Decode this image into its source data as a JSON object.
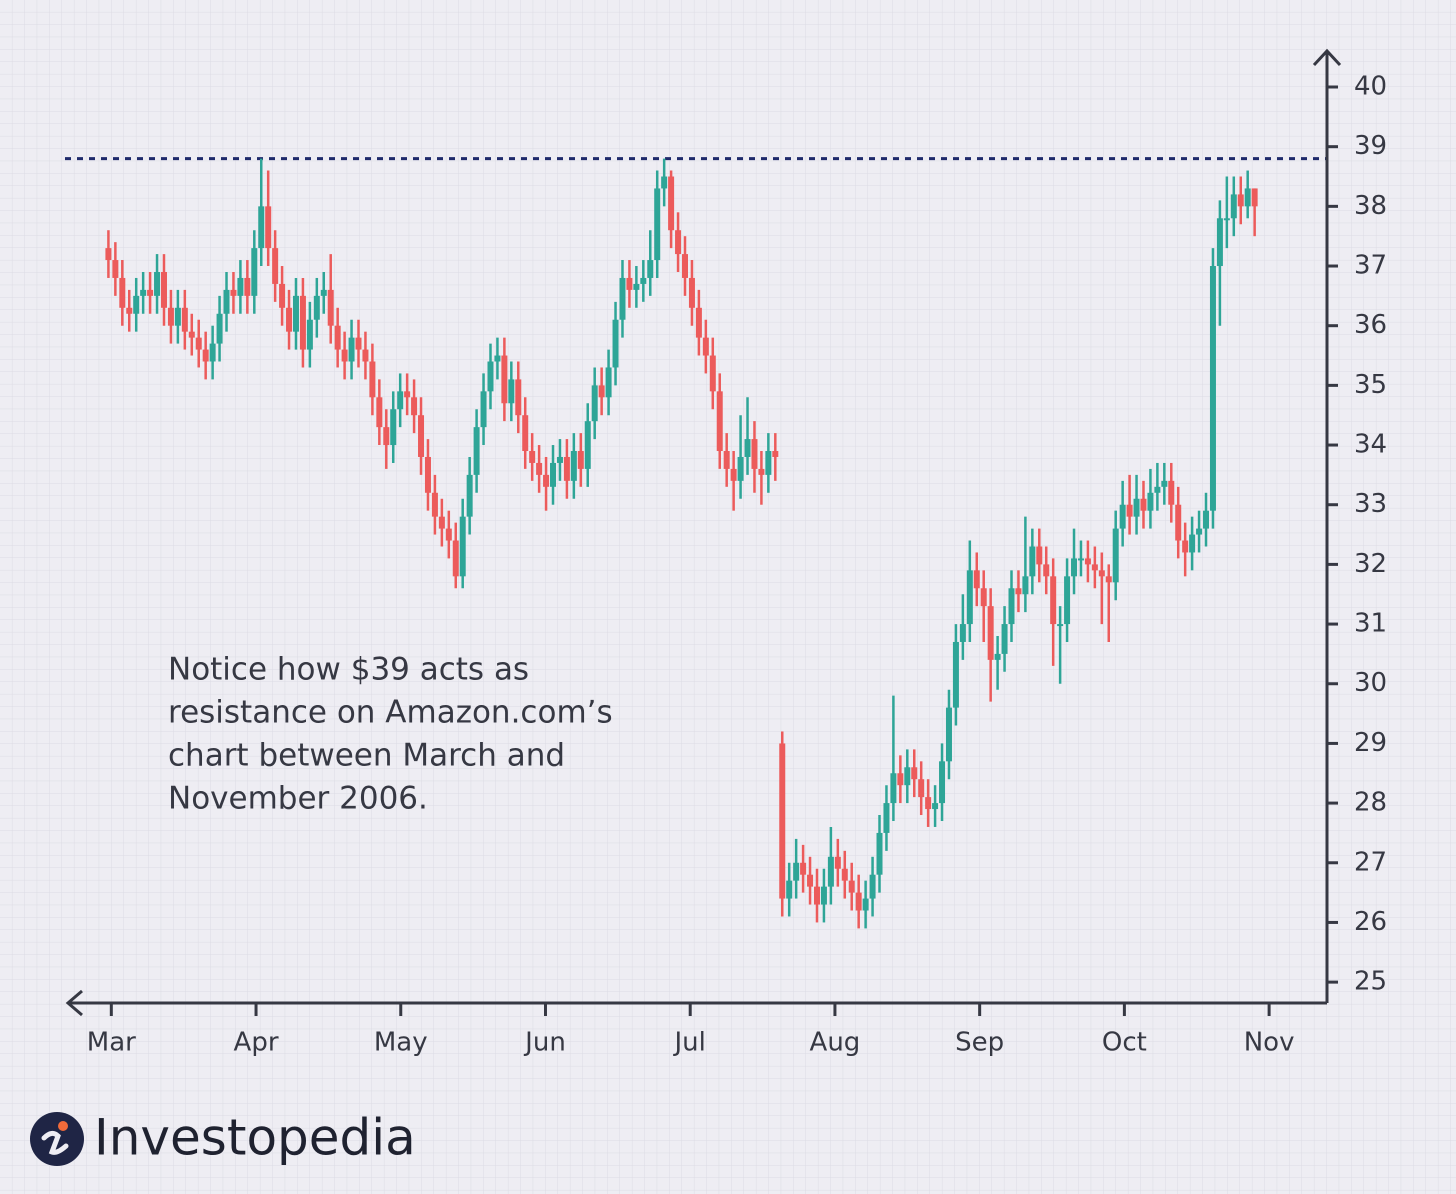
{
  "chart_data": {
    "type": "candlestick",
    "annotation": [
      "Notice how $39 acts as",
      "resistance on Amazon.com’s",
      "chart between March and",
      "November 2006."
    ],
    "resistance": 38.8,
    "up_color": "#2ea597",
    "down_color": "#ec5b5b",
    "grid": true,
    "xlim": [
      -0.32,
      8.4
    ],
    "xticks": [
      {
        "value": 0,
        "label": "Mar"
      },
      {
        "value": 1,
        "label": "Apr"
      },
      {
        "value": 2,
        "label": "May"
      },
      {
        "value": 3,
        "label": "Jun"
      },
      {
        "value": 4,
        "label": "Jul"
      },
      {
        "value": 5,
        "label": "Aug"
      },
      {
        "value": 6,
        "label": "Sep"
      },
      {
        "value": 7,
        "label": "Oct"
      },
      {
        "value": 8,
        "label": "Nov"
      }
    ],
    "ylim": [
      24.65,
      40.62
    ],
    "yticks": [
      25,
      26,
      27,
      28,
      29,
      30,
      31,
      32,
      33,
      34,
      35,
      36,
      37,
      38,
      39,
      40
    ],
    "x": [
      -0.02,
      0.028,
      0.076,
      0.124,
      0.172,
      0.22,
      0.268,
      0.316,
      0.364,
      0.412,
      0.46,
      0.508,
      0.556,
      0.604,
      0.652,
      0.7,
      0.748,
      0.796,
      0.844,
      0.892,
      0.94,
      0.988,
      1.036,
      1.084,
      1.132,
      1.18,
      1.228,
      1.276,
      1.324,
      1.372,
      1.42,
      1.468,
      1.516,
      1.564,
      1.612,
      1.66,
      1.708,
      1.756,
      1.804,
      1.852,
      1.9,
      1.948,
      1.996,
      2.044,
      2.092,
      2.14,
      2.188,
      2.236,
      2.284,
      2.332,
      2.38,
      2.428,
      2.476,
      2.524,
      2.572,
      2.62,
      2.668,
      2.716,
      2.764,
      2.812,
      2.86,
      2.908,
      2.956,
      3.004,
      3.052,
      3.1,
      3.148,
      3.196,
      3.244,
      3.292,
      3.34,
      3.388,
      3.436,
      3.484,
      3.532,
      3.58,
      3.628,
      3.676,
      3.724,
      3.772,
      3.82,
      3.868,
      3.916,
      3.964,
      4.012,
      4.06,
      4.108,
      4.156,
      4.204,
      4.252,
      4.3,
      4.348,
      4.396,
      4.444,
      4.492,
      4.54,
      4.588,
      4.636,
      4.684,
      4.732,
      4.78,
      4.828,
      4.876,
      4.924,
      4.972,
      5.02,
      5.068,
      5.116,
      5.164,
      5.212,
      5.26,
      5.308,
      5.356,
      5.404,
      5.452,
      5.5,
      5.548,
      5.596,
      5.644,
      5.692,
      5.74,
      5.788,
      5.836,
      5.884,
      5.932,
      5.98,
      6.028,
      6.076,
      6.124,
      6.172,
      6.22,
      6.268,
      6.316,
      6.364,
      6.412,
      6.46,
      6.508,
      6.556,
      6.604,
      6.652,
      6.7,
      6.748,
      6.796,
      6.844,
      6.892,
      6.94,
      6.988,
      7.036,
      7.084,
      7.132,
      7.18,
      7.228,
      7.276,
      7.324,
      7.372,
      7.42,
      7.468,
      7.516,
      7.564,
      7.612,
      7.66,
      7.708,
      7.756,
      7.804,
      7.852,
      7.9
    ],
    "open": [
      37.3,
      37.1,
      36.8,
      36.3,
      36.2,
      36.5,
      36.6,
      36.5,
      36.9,
      36.3,
      36.0,
      36.3,
      35.9,
      35.8,
      35.6,
      35.4,
      35.7,
      36.2,
      36.6,
      36.5,
      36.8,
      36.5,
      37.3,
      38.0,
      37.3,
      36.7,
      36.3,
      35.9,
      36.5,
      35.6,
      36.1,
      36.5,
      36.6,
      36.0,
      35.6,
      35.4,
      35.8,
      35.6,
      35.4,
      34.8,
      34.3,
      34.0,
      34.6,
      34.9,
      34.8,
      34.5,
      33.8,
      33.2,
      32.8,
      32.6,
      32.4,
      31.8,
      32.8,
      33.5,
      34.3,
      34.9,
      35.4,
      35.5,
      34.7,
      35.1,
      34.5,
      33.9,
      33.7,
      33.5,
      33.3,
      33.7,
      33.8,
      33.4,
      33.9,
      33.6,
      34.4,
      35.0,
      34.8,
      35.3,
      36.1,
      36.8,
      36.6,
      36.7,
      36.8,
      37.1,
      38.3,
      38.5,
      37.6,
      37.2,
      36.8,
      36.3,
      35.8,
      35.5,
      34.9,
      33.9,
      33.6,
      33.4,
      33.8,
      34.1,
      33.6,
      33.5,
      33.9,
      29.0,
      26.4,
      26.7,
      27.0,
      26.8,
      26.6,
      26.3,
      26.6,
      27.1,
      26.9,
      26.7,
      26.5,
      26.2,
      26.4,
      26.8,
      27.5,
      28.0,
      28.5,
      28.3,
      28.6,
      28.4,
      28.1,
      27.9,
      28.0,
      28.7,
      29.6,
      30.7,
      31.0,
      31.9,
      31.6,
      31.3,
      30.4,
      30.5,
      31.0,
      31.6,
      31.5,
      31.8,
      32.3,
      32.0,
      31.8,
      31.0,
      31.0,
      31.8,
      32.1,
      32.1,
      32.0,
      31.9,
      31.8,
      31.7,
      32.6,
      33.0,
      32.8,
      33.1,
      32.9,
      33.2,
      33.3,
      33.4,
      33.0,
      32.4,
      32.2,
      32.5,
      32.6,
      32.9,
      37.0,
      37.8,
      37.8,
      38.2,
      38.0,
      38.3
    ],
    "high": [
      37.6,
      37.4,
      37.1,
      36.6,
      36.8,
      36.9,
      36.9,
      37.2,
      37.2,
      36.6,
      36.6,
      36.6,
      36.2,
      36.1,
      35.9,
      36.0,
      36.5,
      36.9,
      36.9,
      37.1,
      37.1,
      37.6,
      38.8,
      38.6,
      37.6,
      37.0,
      36.6,
      36.8,
      36.8,
      36.4,
      36.8,
      36.9,
      37.2,
      36.3,
      35.9,
      36.1,
      36.1,
      35.9,
      35.7,
      35.1,
      34.6,
      34.9,
      35.2,
      35.2,
      35.1,
      34.8,
      34.1,
      33.5,
      33.1,
      32.9,
      32.7,
      33.1,
      33.8,
      34.6,
      35.2,
      35.7,
      35.8,
      35.8,
      35.4,
      35.4,
      34.8,
      34.2,
      34.0,
      33.8,
      34.0,
      34.1,
      34.1,
      34.2,
      34.2,
      34.7,
      35.3,
      35.3,
      35.6,
      36.4,
      37.1,
      37.1,
      37.0,
      37.1,
      37.6,
      38.6,
      38.8,
      38.6,
      37.9,
      37.5,
      37.1,
      36.6,
      36.1,
      35.8,
      35.2,
      34.2,
      33.9,
      34.5,
      34.8,
      34.4,
      33.9,
      34.2,
      34.2,
      29.2,
      27.0,
      27.4,
      27.3,
      27.1,
      26.9,
      26.9,
      27.6,
      27.4,
      27.2,
      27.0,
      26.8,
      26.7,
      27.1,
      27.8,
      28.3,
      29.8,
      28.8,
      28.9,
      28.9,
      28.7,
      28.4,
      28.3,
      29.0,
      29.9,
      31.0,
      31.5,
      32.4,
      32.2,
      31.9,
      31.6,
      30.8,
      31.3,
      31.9,
      31.9,
      32.8,
      32.6,
      32.6,
      32.3,
      32.1,
      31.3,
      32.1,
      32.6,
      32.4,
      32.4,
      32.3,
      32.2,
      32.0,
      32.9,
      33.4,
      33.5,
      33.5,
      33.4,
      33.6,
      33.7,
      33.7,
      33.7,
      33.3,
      32.7,
      32.8,
      32.9,
      33.2,
      37.3,
      38.1,
      38.5,
      38.5,
      38.5,
      38.6,
      38.3
    ],
    "low": [
      36.8,
      36.5,
      36.0,
      35.9,
      35.9,
      36.2,
      36.2,
      36.2,
      36.0,
      35.7,
      35.7,
      35.6,
      35.5,
      35.3,
      35.1,
      35.1,
      35.4,
      35.9,
      36.2,
      36.2,
      36.2,
      36.2,
      37.0,
      37.0,
      36.4,
      36.0,
      35.6,
      35.6,
      35.3,
      35.3,
      35.8,
      36.2,
      35.7,
      35.3,
      35.1,
      35.1,
      35.3,
      35.1,
      34.5,
      34.0,
      33.6,
      33.7,
      34.3,
      34.5,
      34.2,
      33.5,
      32.9,
      32.5,
      32.3,
      32.1,
      31.6,
      31.6,
      32.5,
      33.2,
      34.0,
      34.6,
      35.1,
      34.4,
      34.4,
      34.2,
      33.6,
      33.4,
      33.2,
      32.9,
      33.0,
      33.4,
      33.1,
      33.1,
      33.3,
      33.3,
      34.1,
      34.5,
      34.5,
      35.0,
      35.8,
      36.3,
      36.3,
      36.4,
      36.5,
      36.8,
      38.0,
      37.3,
      36.9,
      36.5,
      36.0,
      35.5,
      35.2,
      34.6,
      33.6,
      33.3,
      32.9,
      33.1,
      33.5,
      33.2,
      33.0,
      33.2,
      33.4,
      26.1,
      26.1,
      26.4,
      26.5,
      26.3,
      26.0,
      26.0,
      26.3,
      26.6,
      26.4,
      26.2,
      25.9,
      25.9,
      26.1,
      26.5,
      27.2,
      27.7,
      28.0,
      28.0,
      28.1,
      27.8,
      27.6,
      27.6,
      27.7,
      28.4,
      29.3,
      30.4,
      30.7,
      31.3,
      30.7,
      29.7,
      29.9,
      30.2,
      30.7,
      31.2,
      31.2,
      31.5,
      31.7,
      31.5,
      30.3,
      30.0,
      30.7,
      31.5,
      31.8,
      31.7,
      31.6,
      31.0,
      30.7,
      31.4,
      32.3,
      32.5,
      32.5,
      32.6,
      32.6,
      32.9,
      33.0,
      32.7,
      32.1,
      31.8,
      31.9,
      32.2,
      32.3,
      32.6,
      36.0,
      37.3,
      37.5,
      37.7,
      37.8,
      37.5
    ],
    "close": [
      37.1,
      36.8,
      36.3,
      36.2,
      36.5,
      36.6,
      36.5,
      36.9,
      36.3,
      36.0,
      36.3,
      35.9,
      35.8,
      35.6,
      35.4,
      35.7,
      36.2,
      36.6,
      36.5,
      36.8,
      36.5,
      37.3,
      38.0,
      37.3,
      36.7,
      36.3,
      35.9,
      36.5,
      35.6,
      36.1,
      36.5,
      36.6,
      36.0,
      35.6,
      35.4,
      35.8,
      35.6,
      35.4,
      34.8,
      34.3,
      34.0,
      34.6,
      34.9,
      34.8,
      34.5,
      33.8,
      33.2,
      32.8,
      32.6,
      32.4,
      31.8,
      32.8,
      33.5,
      34.3,
      34.9,
      35.4,
      35.5,
      34.7,
      35.1,
      34.5,
      33.9,
      33.7,
      33.5,
      33.3,
      33.7,
      33.8,
      33.4,
      33.9,
      33.6,
      34.4,
      35.0,
      34.8,
      35.3,
      36.1,
      36.8,
      36.6,
      36.7,
      36.8,
      37.1,
      38.3,
      38.5,
      37.6,
      37.2,
      36.8,
      36.3,
      35.8,
      35.5,
      34.9,
      33.9,
      33.6,
      33.4,
      33.8,
      34.1,
      33.6,
      33.5,
      33.9,
      33.8,
      26.4,
      26.7,
      27.0,
      26.8,
      26.6,
      26.3,
      26.6,
      27.1,
      26.9,
      26.7,
      26.5,
      26.2,
      26.4,
      26.8,
      27.5,
      28.0,
      28.5,
      28.3,
      28.6,
      28.4,
      28.1,
      27.9,
      28.0,
      28.7,
      29.6,
      30.7,
      31.0,
      31.9,
      31.6,
      31.3,
      30.4,
      30.5,
      31.0,
      31.6,
      31.5,
      31.8,
      32.3,
      32.0,
      31.8,
      31.0,
      31.0,
      31.8,
      32.1,
      32.1,
      32.0,
      31.9,
      31.8,
      31.7,
      32.6,
      33.0,
      32.8,
      33.1,
      32.9,
      33.2,
      33.3,
      33.4,
      33.0,
      32.4,
      32.2,
      32.5,
      32.6,
      32.9,
      37.0,
      37.8,
      37.8,
      38.2,
      38.0,
      38.3,
      38.0
    ]
  },
  "brand": "Investopedia"
}
